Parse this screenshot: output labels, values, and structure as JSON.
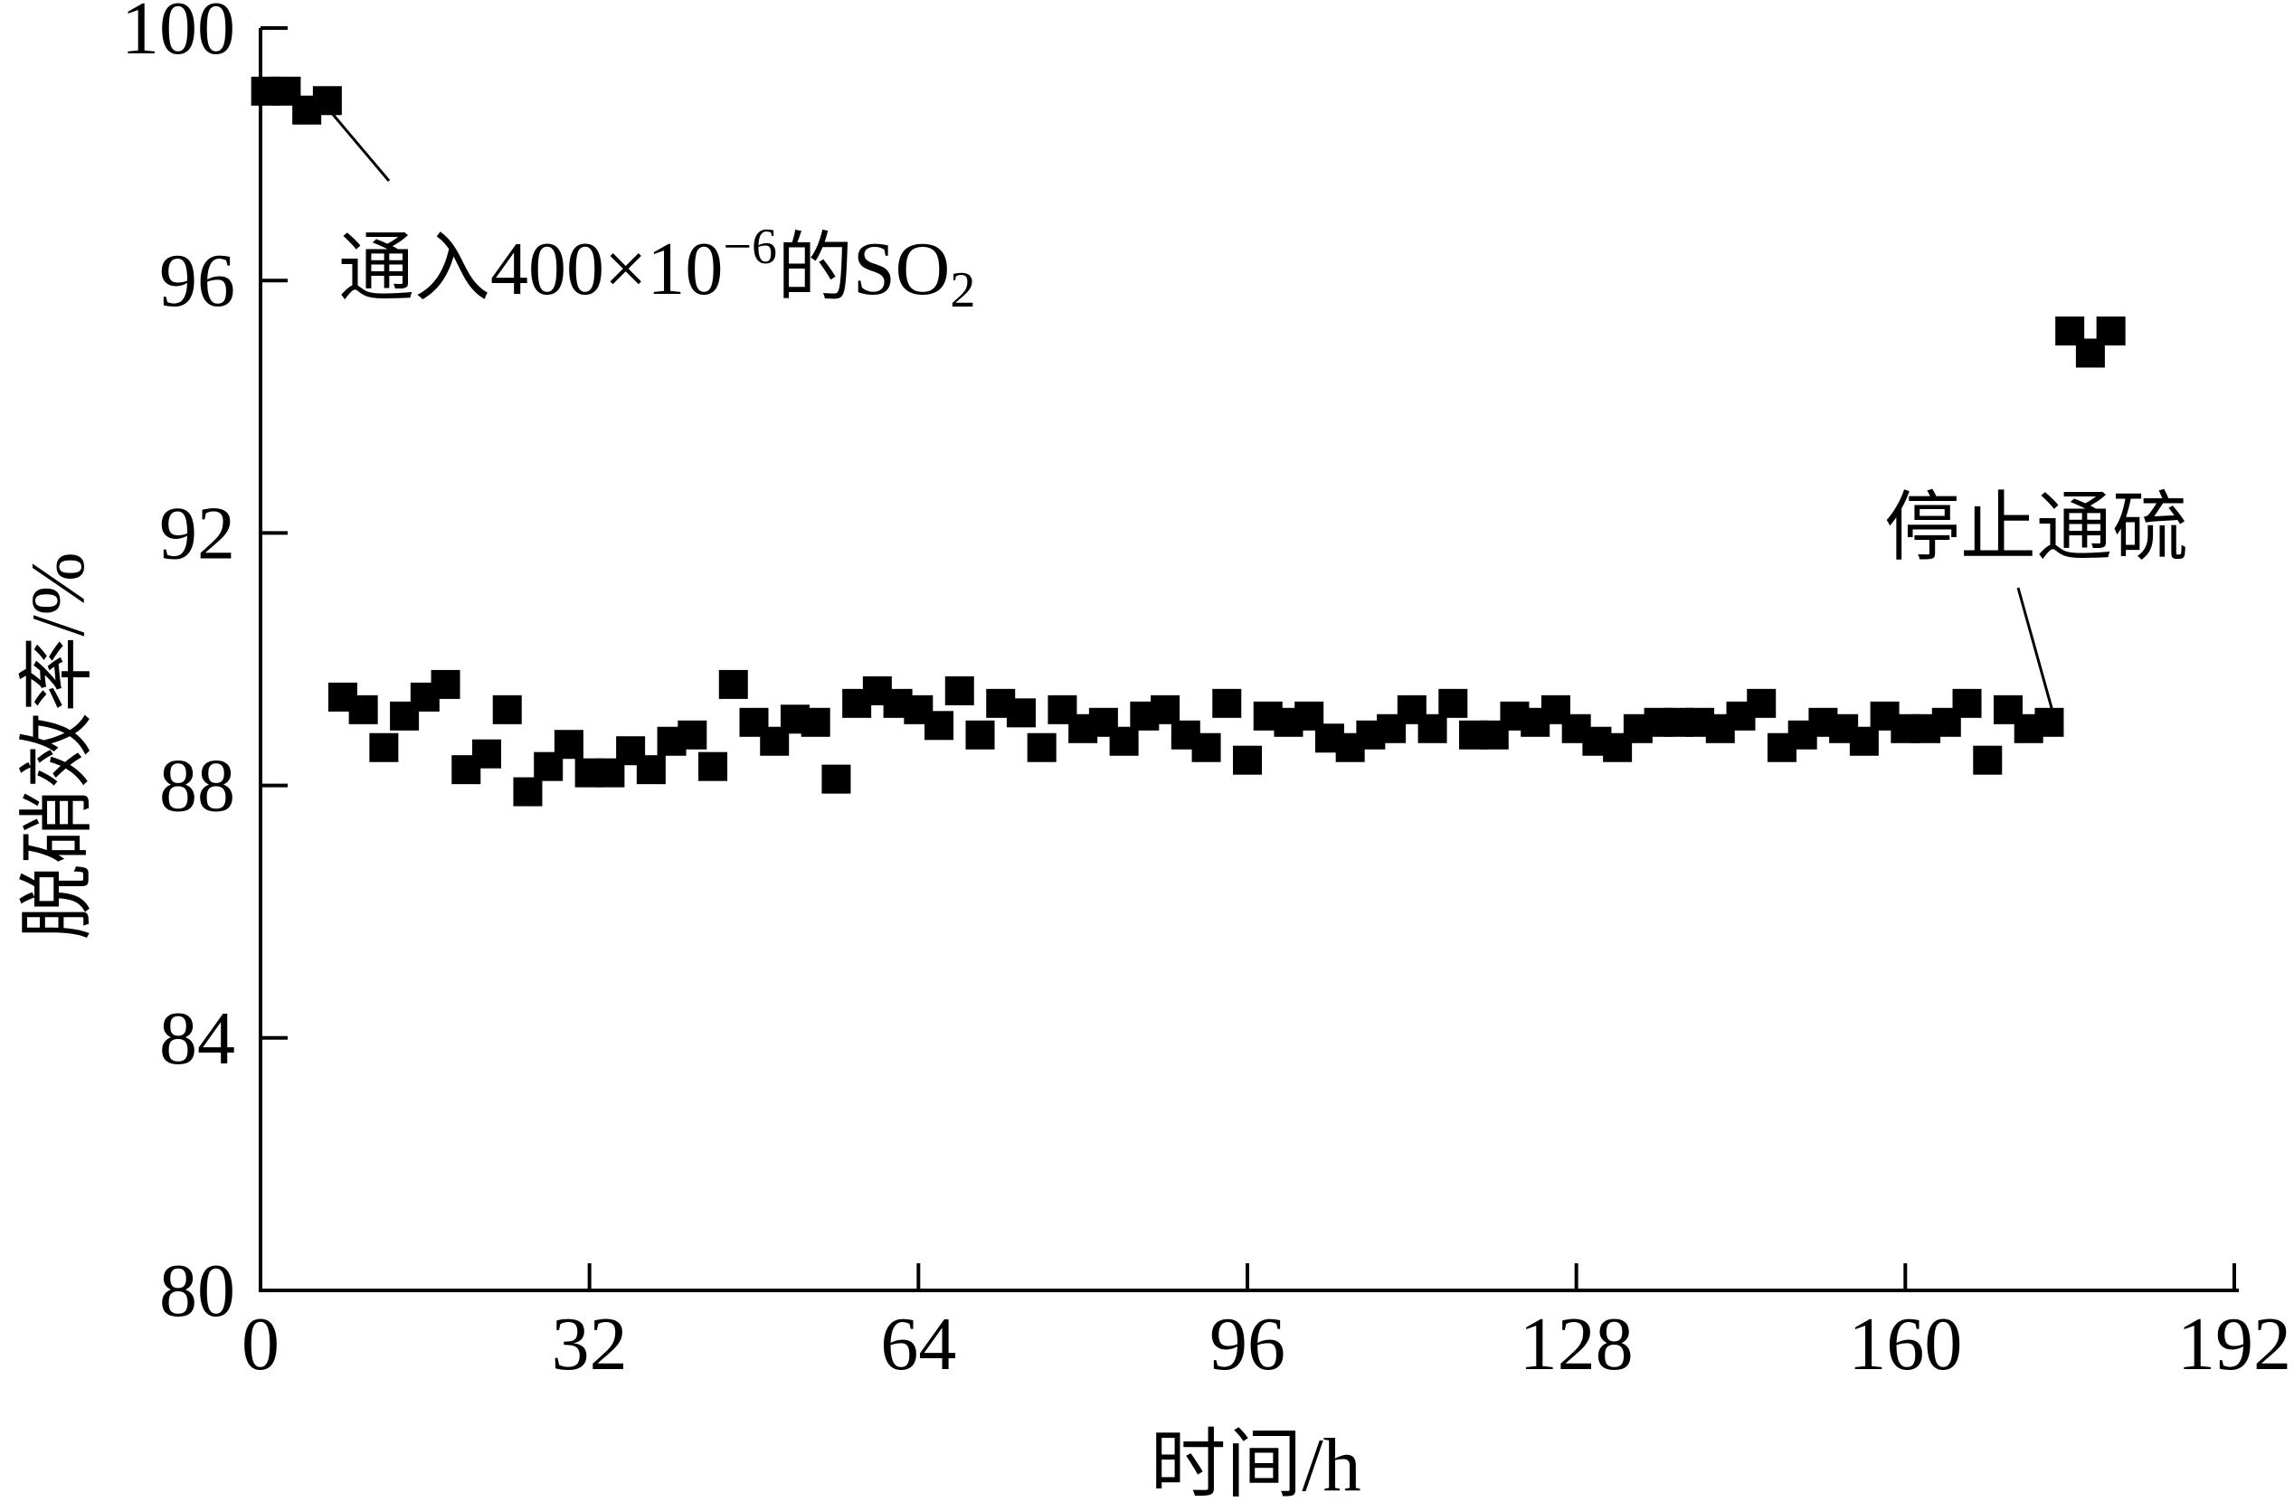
{
  "chart_data": {
    "type": "scatter",
    "title": "",
    "xlabel": "时间/h",
    "ylabel": "脱硝效率/%",
    "xlim": [
      0,
      192
    ],
    "ylim": [
      80,
      100
    ],
    "xticks": [
      0,
      32,
      64,
      96,
      128,
      160,
      192
    ],
    "yticks": [
      80,
      84,
      88,
      92,
      96,
      100
    ],
    "xtick_labels": [
      "0",
      "32",
      "64",
      "96",
      "128",
      "160",
      "192"
    ],
    "ytick_labels": [
      "80",
      "84",
      "88",
      "92",
      "96",
      "100"
    ],
    "grid": false,
    "legend": null,
    "marker": "square",
    "marker_color": "#000000",
    "series": [
      {
        "x": [
          0.5,
          2.5,
          4.5,
          6.5,
          8.0,
          10.0,
          12.0,
          14.0,
          16.0,
          18.0,
          20.0,
          22.0,
          24.0,
          26.0,
          28.0,
          30.0,
          32.0,
          34.0,
          36.0,
          38.0,
          40.0,
          42.0,
          44.0,
          46.0,
          48.0,
          50.0,
          52.0,
          54.0,
          56.0,
          58.0,
          60.0,
          62.0,
          64.0,
          66.0,
          68.0,
          70.0,
          72.0,
          74.0,
          76.0,
          78.0,
          80.0,
          82.0,
          84.0,
          86.0,
          88.0,
          90.0,
          92.0,
          94.0,
          96.0,
          98.0,
          100.0,
          102.0,
          104.0,
          106.0,
          108.0,
          110.0,
          112.0,
          114.0,
          116.0,
          118.0,
          120.0,
          122.0,
          124.0,
          126.0,
          128.0,
          130.0,
          132.0,
          134.0,
          136.0,
          138.0,
          140.0,
          142.0,
          144.0,
          146.0,
          148.0,
          150.0,
          152.0,
          154.0,
          156.0,
          158.0,
          160.0,
          162.0,
          164.0,
          166.0,
          168.0,
          170.0,
          172.0,
          174.0,
          176.0,
          178.0,
          180.0
        ],
        "y": [
          99.0,
          99.0,
          98.7,
          98.85,
          89.4,
          89.2,
          88.6,
          89.1,
          89.4,
          89.6,
          88.25,
          88.5,
          89.2,
          87.9,
          88.3,
          88.65,
          88.2,
          88.2,
          88.55,
          88.25,
          88.7,
          88.8,
          88.3,
          89.6,
          89.0,
          88.7,
          89.05,
          89.0,
          88.1,
          89.3,
          89.5,
          89.3,
          89.2,
          88.95,
          89.5,
          88.8,
          89.3,
          89.15,
          88.6,
          89.2,
          88.9,
          89.0,
          88.7,
          89.1,
          89.2,
          88.8,
          88.6,
          89.3,
          88.4,
          89.1,
          89.0,
          89.1,
          88.75,
          88.6,
          88.8,
          88.9,
          89.2,
          88.9,
          89.3,
          88.8,
          88.8,
          89.1,
          89.0,
          89.2,
          88.9,
          88.7,
          88.6,
          88.9,
          89.0,
          89.0,
          89.0,
          88.9,
          89.1,
          89.3,
          88.6,
          88.8,
          89.0,
          88.9,
          88.7,
          89.1,
          88.9,
          88.9,
          89.0,
          89.3,
          88.4,
          89.2,
          88.9,
          89.0,
          95.2,
          94.85,
          95.2
        ]
      }
    ],
    "annotations": [
      {
        "text": "通入400×10",
        "superscript": "−6",
        "suffix": "的SO",
        "subscript": "2"
      },
      {
        "text": "停止通硫"
      }
    ]
  }
}
